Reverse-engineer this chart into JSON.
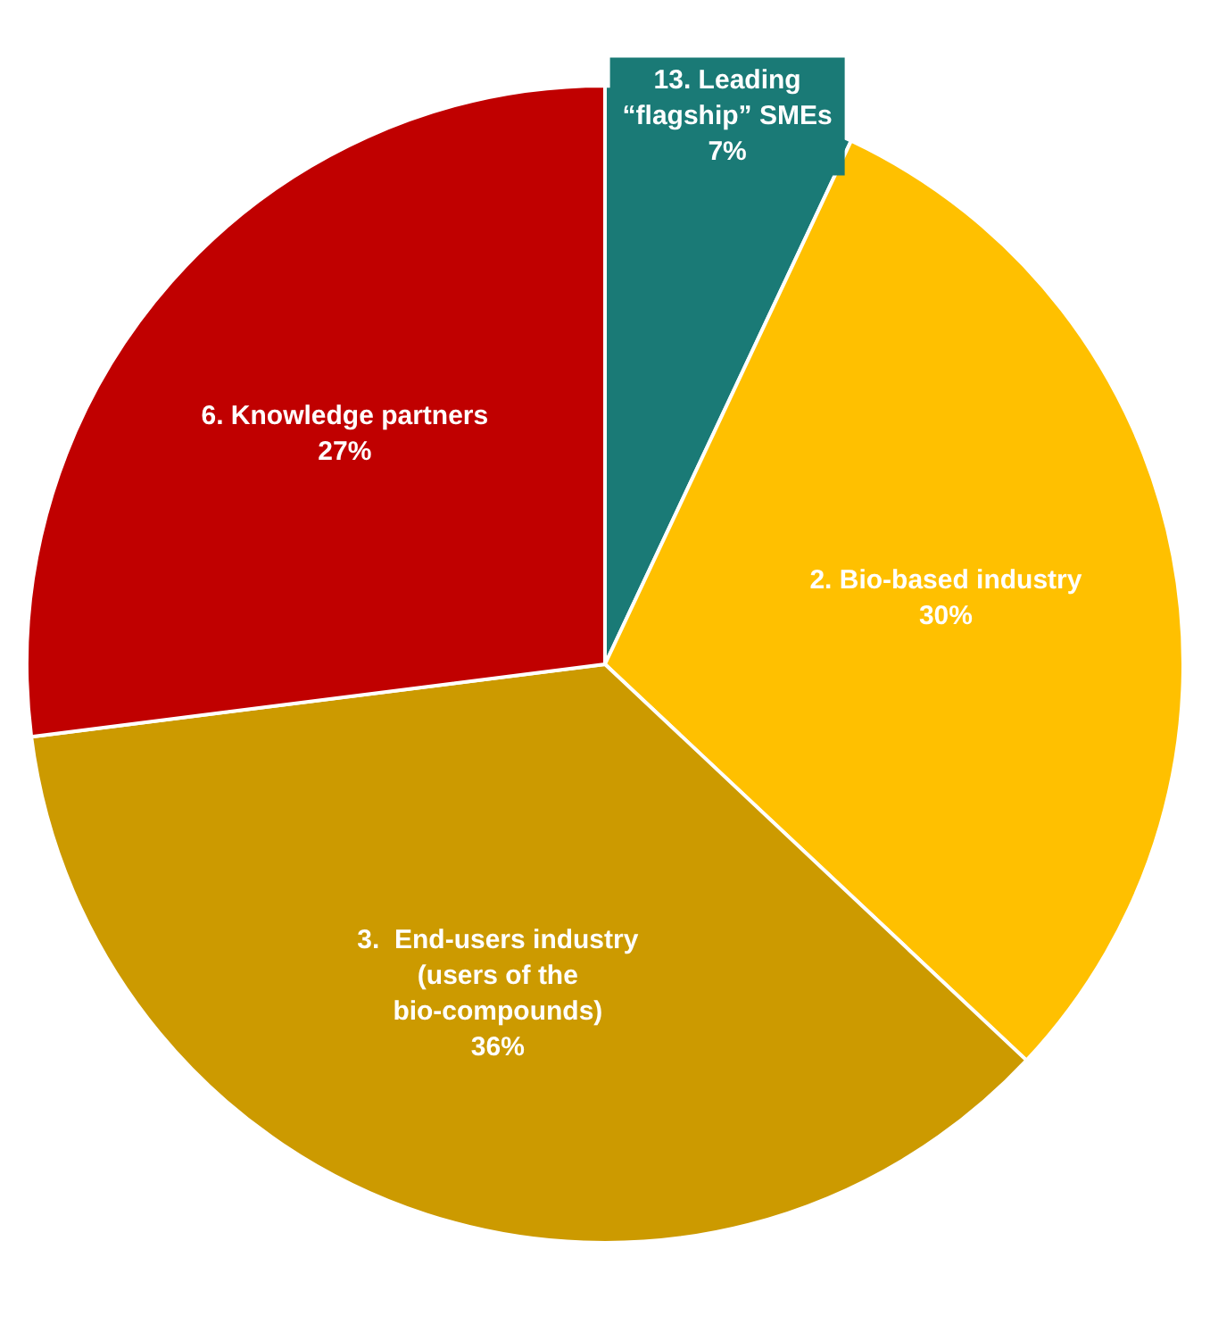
{
  "chart_data": {
    "type": "pie",
    "categories": [
      "13. Leading “flagship” SMEs",
      "2. Bio-based industry",
      "3.  End-users industry (users of the bio-compounds)",
      "6. Knowledge partners"
    ],
    "values": [
      7,
      30,
      36,
      27
    ],
    "value_labels": [
      "7%",
      "30%",
      "36%",
      "27%"
    ],
    "colors": [
      "#1a7a76",
      "#ffc000",
      "#cc9a00",
      "#c00000"
    ],
    "legend": false
  }
}
